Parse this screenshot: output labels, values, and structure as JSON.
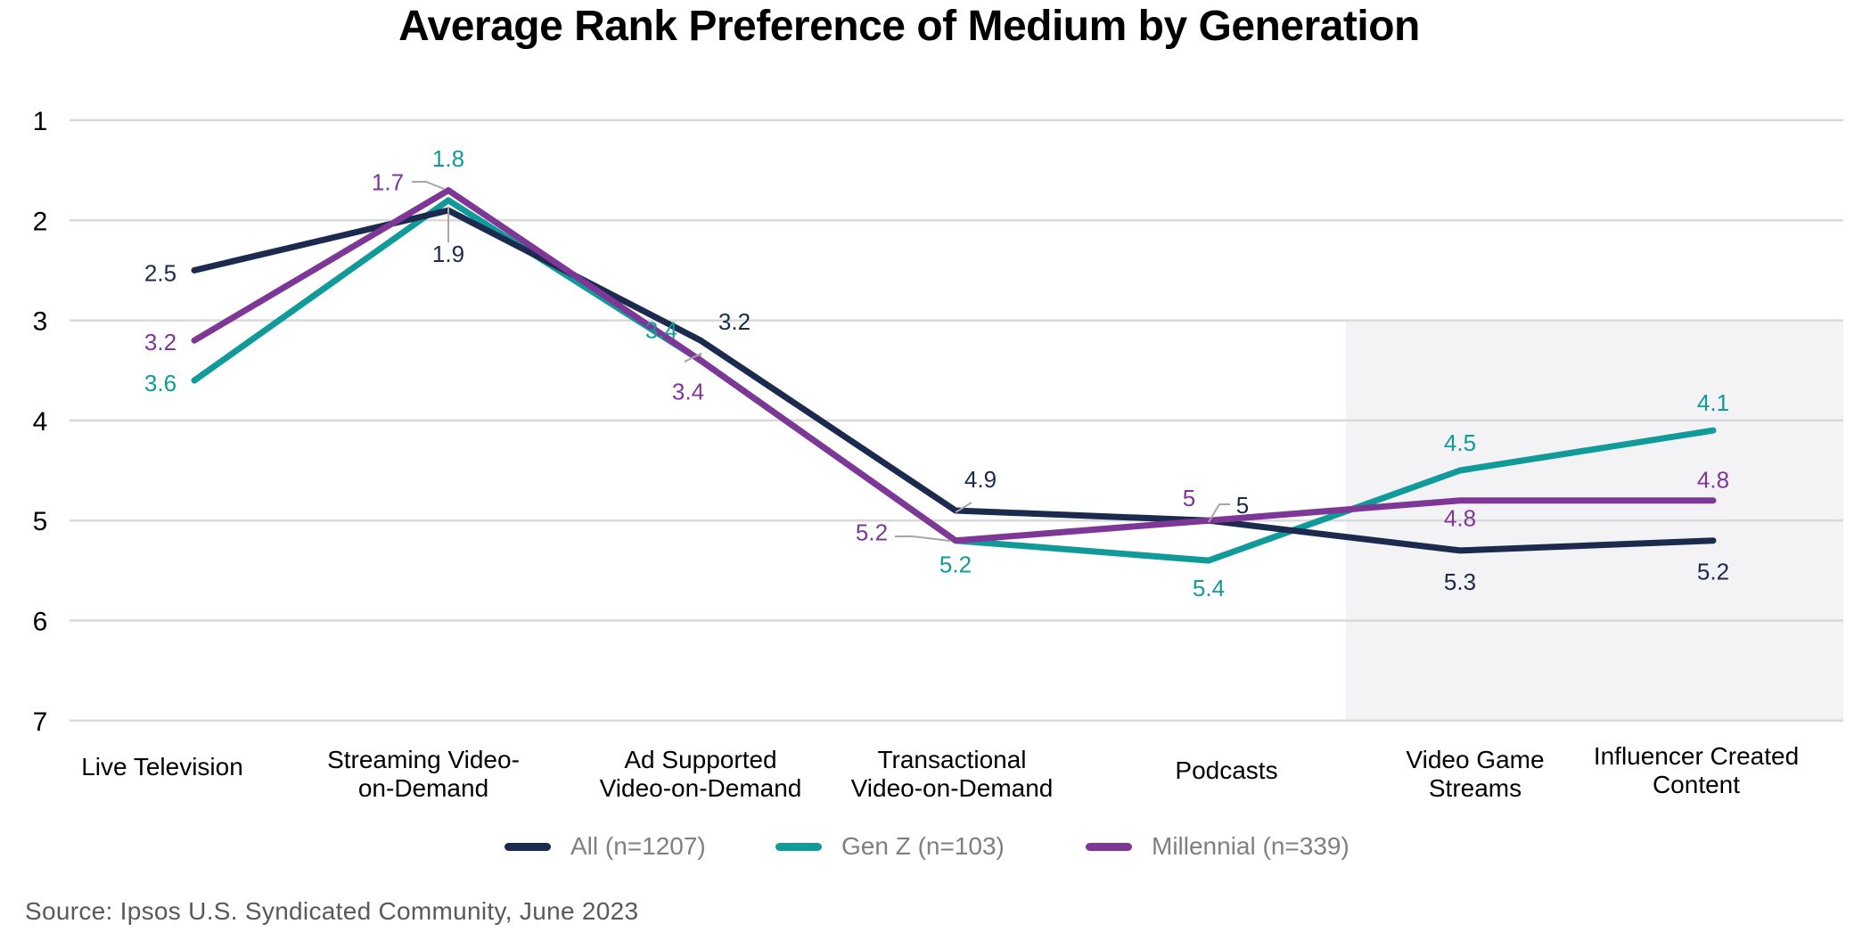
{
  "chart_data": {
    "type": "line",
    "title": "Average Rank Preference of Medium by Generation",
    "categories": [
      [
        "Live Television"
      ],
      [
        "Streaming Video-",
        "on-Demand"
      ],
      [
        "Ad Supported",
        "Video-on-Demand"
      ],
      [
        "Transactional",
        "Video-on-Demand"
      ],
      [
        "Podcasts"
      ],
      [
        "Video Game",
        "Streams"
      ],
      [
        "Influencer Created",
        "Content"
      ]
    ],
    "yticks": [
      "1",
      "2",
      "3",
      "4",
      "5",
      "6",
      "7"
    ],
    "ylim": [
      1,
      7
    ],
    "y_inverted": true,
    "highlighted_categories": [
      5,
      6
    ],
    "series": [
      {
        "name": "All (n=1207)",
        "color": "#1b2a4e",
        "values": [
          2.5,
          1.9,
          3.2,
          4.9,
          5,
          5.3,
          5.2
        ],
        "labels": [
          "2.5",
          "1.9",
          "3.2",
          "4.9",
          "5",
          "5.3",
          "5.2"
        ]
      },
      {
        "name": "Gen Z (n=103)",
        "color": "#109a9a",
        "values": [
          3.6,
          1.8,
          3.4,
          5.2,
          5.4,
          4.5,
          4.1
        ],
        "labels": [
          "3.6",
          "1.8",
          "3.4",
          "5.2",
          "5.4",
          "4.5",
          "4.1"
        ]
      },
      {
        "name": "Millennial (n=339)",
        "color": "#7e3796",
        "values": [
          3.2,
          1.7,
          3.4,
          5.2,
          5,
          4.8,
          4.8
        ],
        "labels": [
          "3.2",
          "1.7",
          "3.4",
          "5.2",
          "5",
          "4.8",
          "4.8"
        ]
      }
    ],
    "source": "Source: Ipsos U.S. Syndicated Community, June 2023",
    "legend_position": "bottom"
  }
}
